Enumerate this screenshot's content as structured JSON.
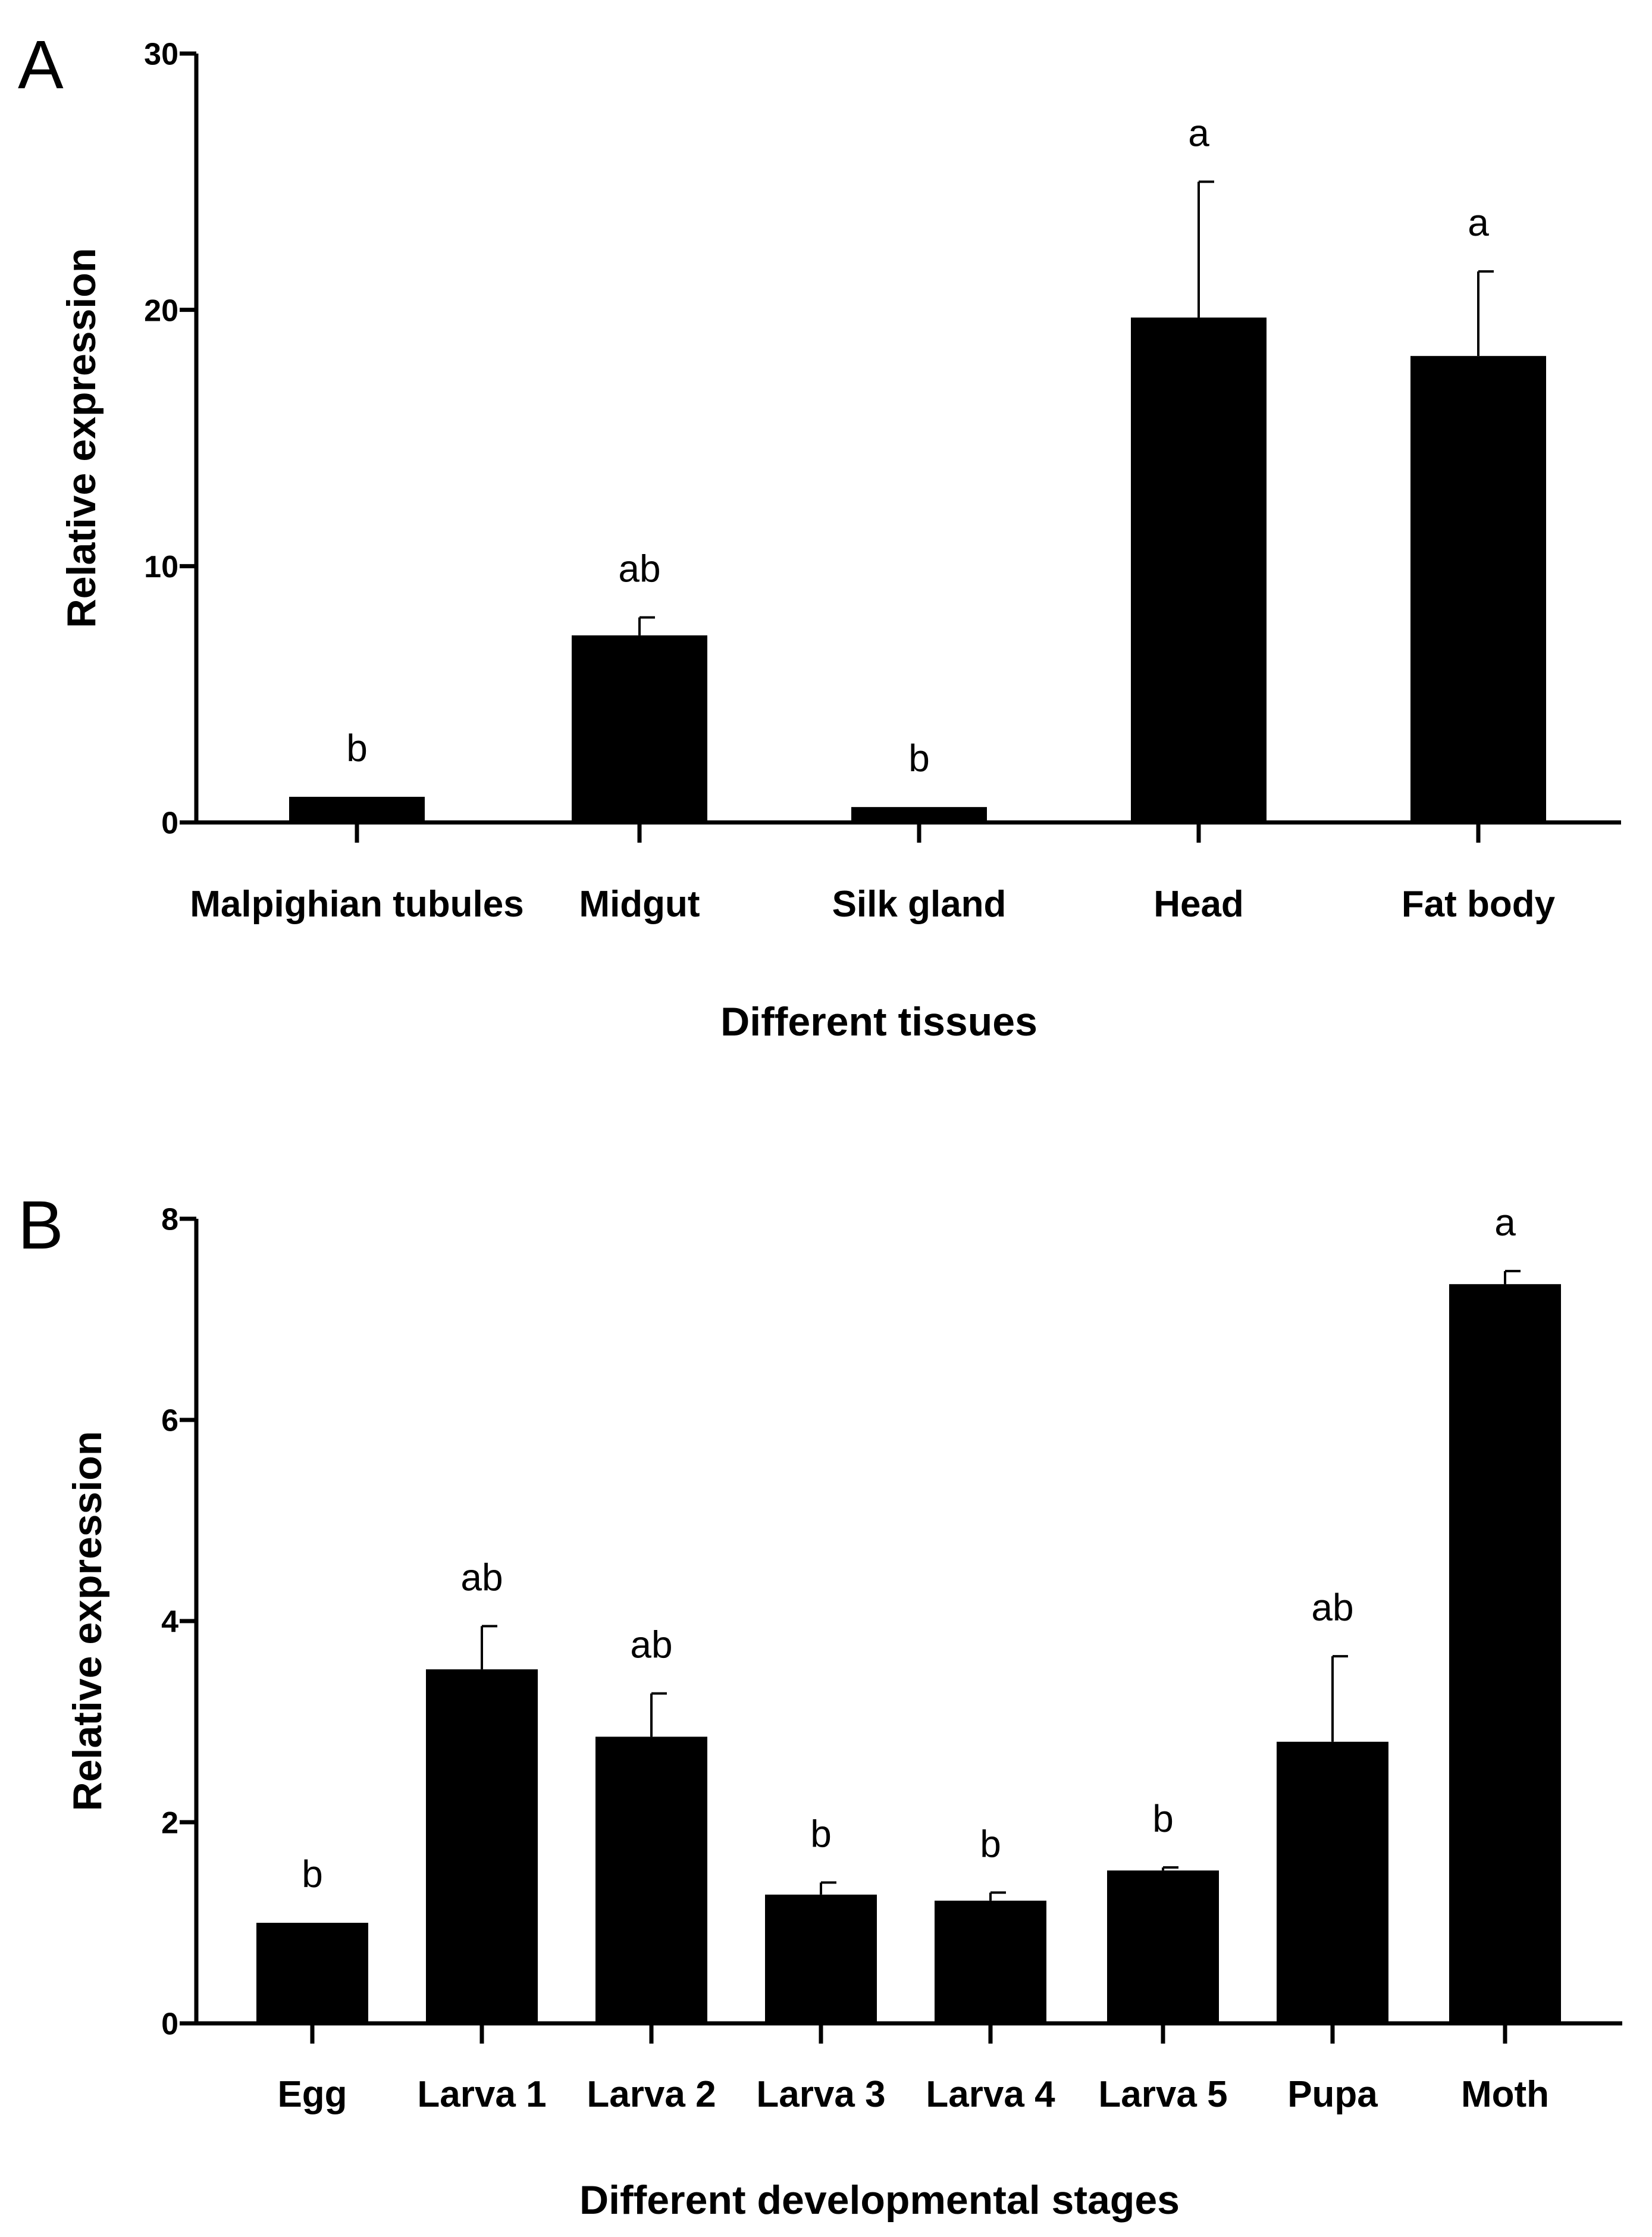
{
  "figure": {
    "panel_a_letter": "A",
    "panel_b_letter": "B"
  },
  "chart_data": [
    {
      "type": "bar",
      "panel": "A",
      "title": "",
      "xlabel": "Different tissues",
      "ylabel": "Relative expression",
      "ylim": [
        0,
        30
      ],
      "yticks": [
        0,
        10,
        20,
        30
      ],
      "ytick_labels": [
        "0",
        "10",
        "20",
        "30"
      ],
      "grid": false,
      "bar_color": "#000000",
      "categories": [
        "Malpighian tubules",
        "Midgut",
        "Silk gland",
        "Head",
        "Fat body"
      ],
      "values": [
        1.0,
        7.3,
        0.6,
        19.7,
        18.2
      ],
      "errors": [
        0.0,
        0.7,
        0.0,
        5.3,
        3.3
      ],
      "significance_letters": [
        "b",
        "ab",
        "b",
        "a",
        "a"
      ]
    },
    {
      "type": "bar",
      "panel": "B",
      "title": "",
      "xlabel": "Different developmental stages",
      "ylabel": "Relative expression",
      "ylim": [
        0,
        8
      ],
      "yticks": [
        0,
        2,
        4,
        6,
        8
      ],
      "ytick_labels": [
        "0",
        "2",
        "4",
        "6",
        "8"
      ],
      "grid": false,
      "bar_color": "#000000",
      "categories": [
        "Egg",
        "Larva 1",
        "Larva 2",
        "Larva 3",
        "Larva 4",
        "Larva 5",
        "Pupa",
        "Moth"
      ],
      "values": [
        1.0,
        3.52,
        2.85,
        1.28,
        1.22,
        1.52,
        2.8,
        7.35
      ],
      "errors": [
        0.0,
        0.43,
        0.43,
        0.12,
        0.08,
        0.03,
        0.85,
        0.13
      ],
      "significance_letters": [
        "b",
        "ab",
        "ab",
        "b",
        "b",
        "b",
        "ab",
        "a"
      ]
    }
  ]
}
